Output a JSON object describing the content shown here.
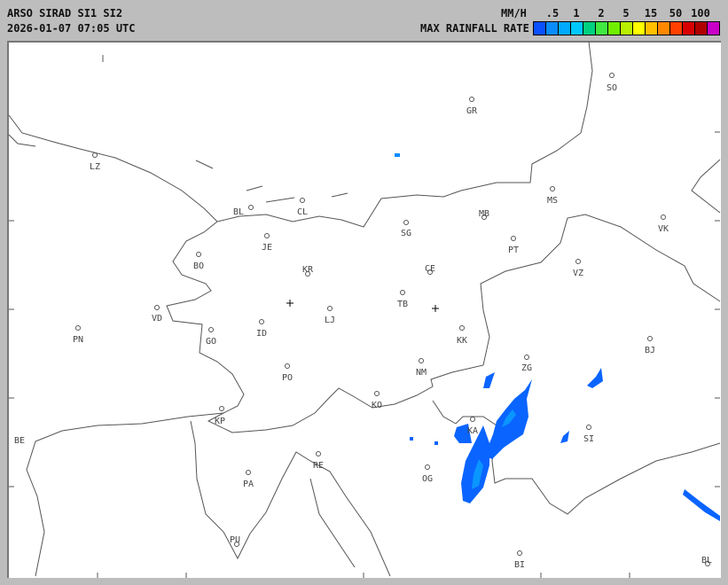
{
  "header": {
    "title": "ARSO SIRAD SI1 SI2",
    "timestamp": "2026-01-07 07:05 UTC",
    "unit": "MM/H",
    "legend_label": "MAX RAINFALL RATE"
  },
  "legend": {
    "ticks": [
      ".5",
      "1",
      "2",
      "5",
      "15",
      "50",
      "100"
    ],
    "colors": [
      "#0a50ff",
      "#0a8cff",
      "#00aaff",
      "#00c8ff",
      "#00d080",
      "#40e840",
      "#70f000",
      "#b8f000",
      "#ffff00",
      "#ffc000",
      "#ff8800",
      "#ff4000",
      "#d80000",
      "#b00000",
      "#c800c8"
    ]
  },
  "map": {
    "cities": [
      "SO",
      "GR",
      "LZ",
      "BL",
      "CL",
      "MS",
      "MB",
      "VK",
      "SG",
      "JE",
      "PT",
      "BO",
      "VZ",
      "KR",
      "CE",
      "TB",
      "VD",
      "LJ",
      "ID",
      "PN",
      "GO",
      "KK",
      "BJ",
      "ZG",
      "NM",
      "PO",
      "KO",
      "KP",
      "KA",
      "SI",
      "BE",
      "RE",
      "OG",
      "PA",
      "PU",
      "BI",
      "BL"
    ],
    "border_color": "#555555",
    "rain_colors": {
      "light": "#0a64ff",
      "moderate": "#0a96ff"
    }
  }
}
